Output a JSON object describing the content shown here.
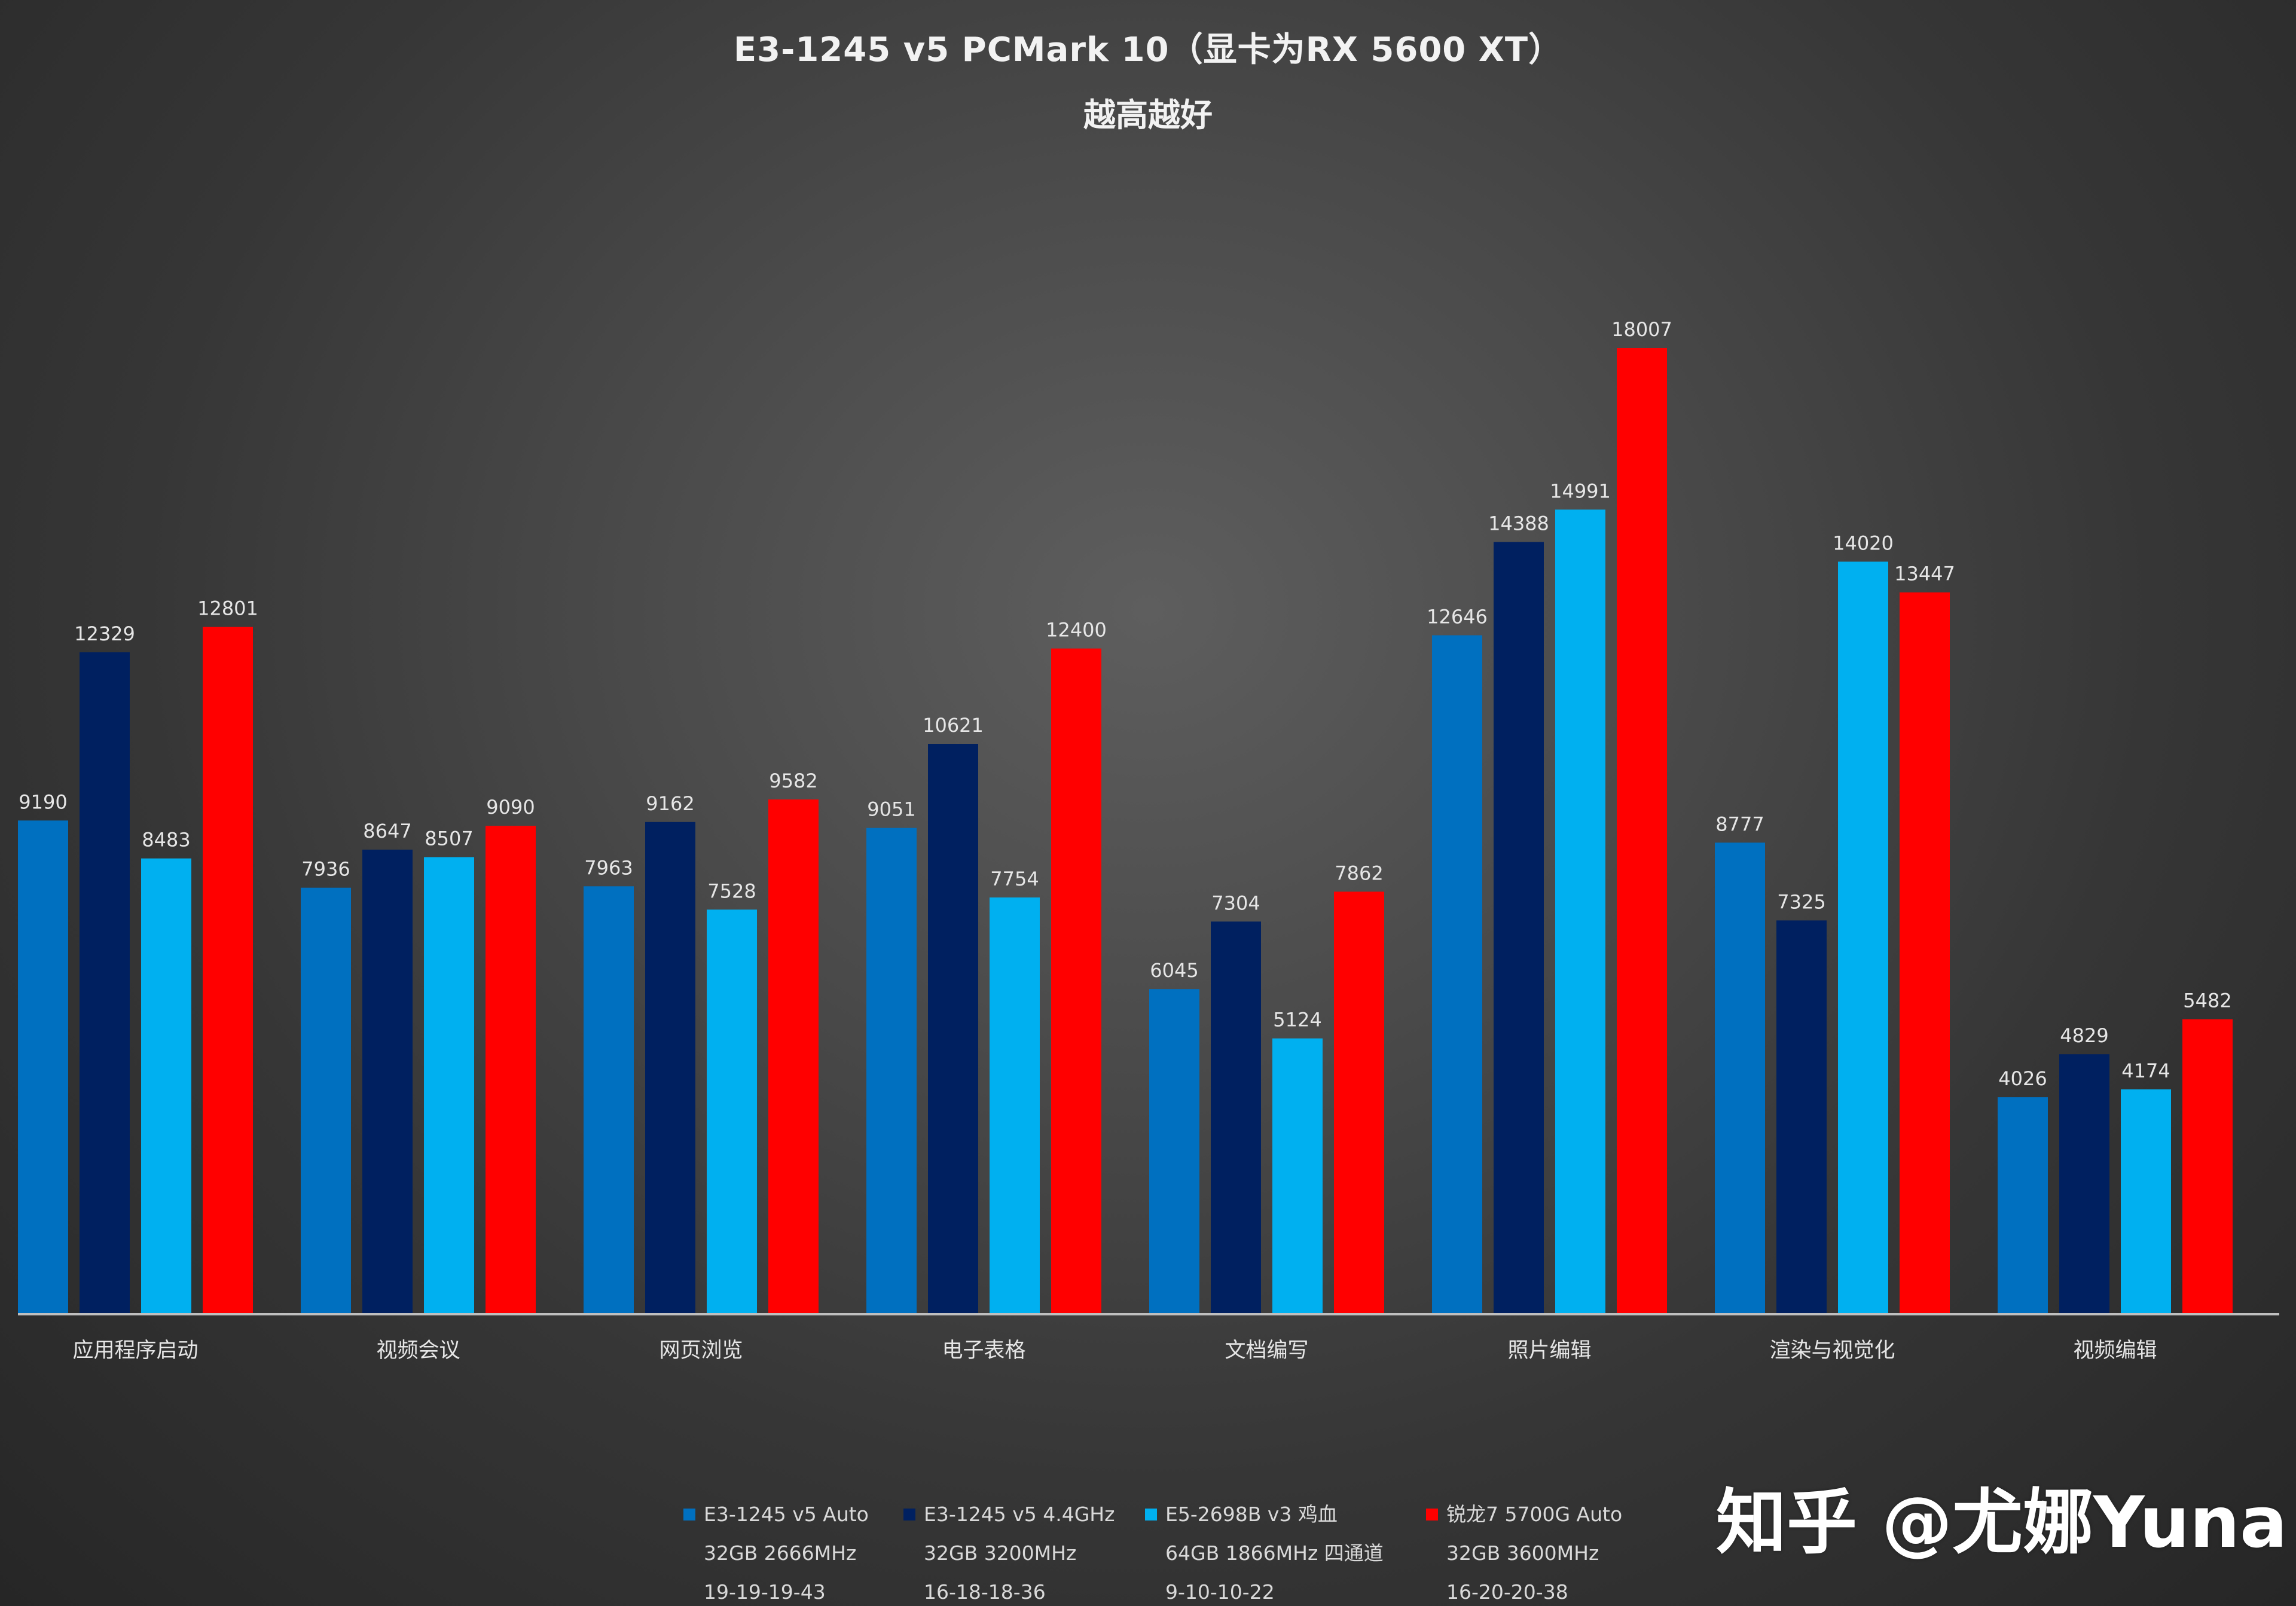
{
  "chart_data": {
    "type": "bar",
    "title": "E3-1245 v5 PCMark 10（显卡为RX 5600 XT）",
    "subtitle": "越高越好",
    "categories": [
      "应用程序启动",
      "视频会议",
      "网页浏览",
      "电子表格",
      "文档编写",
      "照片编辑",
      "渲染与视觉化",
      "视频编辑"
    ],
    "series": [
      {
        "name": "E3-1245 v5 Auto",
        "legend_lines": [
          "E3-1245 v5 Auto",
          "32GB 2666MHz",
          "19-19-19-43"
        ],
        "color": "#0070c0",
        "values": [
          9190,
          7936,
          7963,
          9051,
          6045,
          12646,
          8777,
          4026
        ]
      },
      {
        "name": "E3-1245 v5 4.4GHz",
        "legend_lines": [
          "E3-1245 v5 4.4GHz",
          "32GB 3200MHz",
          "16-18-18-36"
        ],
        "color": "#002060",
        "values": [
          12329,
          8647,
          9162,
          10621,
          7304,
          14388,
          7325,
          4829
        ]
      },
      {
        "name": "E5-2698B v3 鸡血",
        "legend_lines": [
          "E5-2698B v3 鸡血",
          "64GB 1866MHz 四通道",
          "9-10-10-22"
        ],
        "color": "#00b0f0",
        "values": [
          8483,
          8507,
          7528,
          7754,
          5124,
          14991,
          14020,
          4174
        ]
      },
      {
        "name": "锐龙7 5700G Auto",
        "legend_lines": [
          "锐龙7 5700G Auto",
          "32GB 3600MHz",
          "16-20-20-38"
        ],
        "color": "#ff0000",
        "values": [
          12801,
          9090,
          9582,
          12400,
          7862,
          18007,
          13447,
          5482
        ]
      }
    ],
    "ylim": [
      0,
      20000
    ],
    "grid": false,
    "legend_position": "bottom"
  },
  "watermark": "知乎 @尤娜Yuna"
}
